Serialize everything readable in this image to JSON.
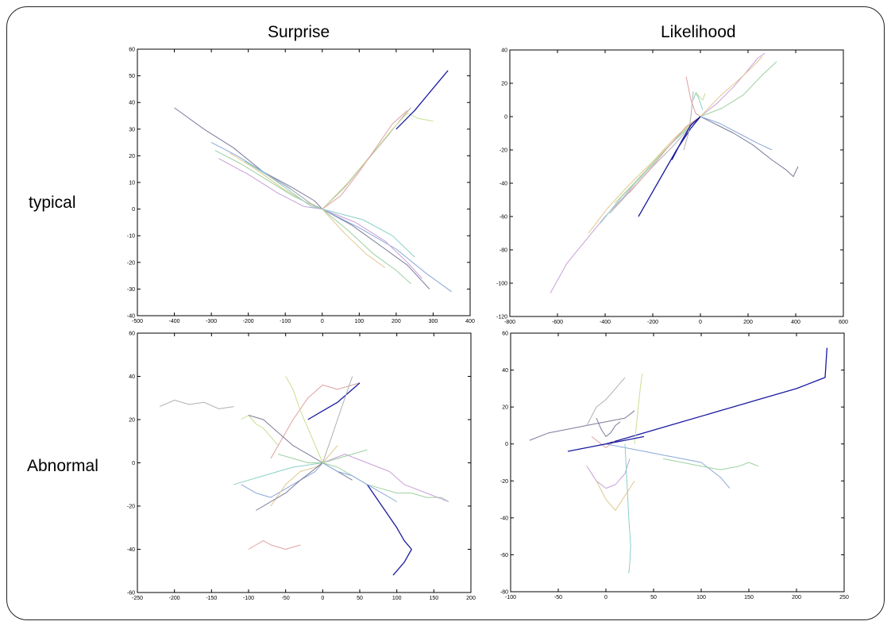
{
  "column_titles": [
    "Surprise",
    "Likelihood"
  ],
  "row_labels": [
    "typical",
    "Abnormal"
  ],
  "colors": {
    "axis": "#000000",
    "traj": [
      "#7a7a9a",
      "#8aa8d8",
      "#9cd0a0",
      "#c8a0d8",
      "#e0c890",
      "#8ad0c8",
      "#b0b0b0",
      "#c8e090",
      "#e0a0a0",
      "#1a1aa0"
    ]
  },
  "chart_data": [
    {
      "id": "typical-surprise",
      "type": "line",
      "title": "",
      "xlabel": "",
      "ylabel": "",
      "xlim": [
        -500,
        400
      ],
      "ylim": [
        -40,
        60
      ],
      "xticks": [
        -500,
        -400,
        -300,
        -200,
        -100,
        0,
        100,
        200,
        300,
        400
      ],
      "yticks": [
        -40,
        -30,
        -20,
        -10,
        0,
        10,
        20,
        30,
        40,
        50,
        60
      ],
      "series": [
        {
          "x": [
            -400,
            -320,
            -240,
            -160,
            -80,
            -20,
            0
          ],
          "y": [
            38,
            30,
            23,
            14,
            8,
            3,
            0
          ]
        },
        {
          "x": [
            -300,
            -230,
            -160,
            -90,
            -30,
            0
          ],
          "y": [
            25,
            20,
            14,
            8,
            2,
            0
          ]
        },
        {
          "x": [
            -290,
            -220,
            -150,
            -80,
            -20,
            0
          ],
          "y": [
            22,
            17,
            11,
            5,
            1,
            0
          ]
        },
        {
          "x": [
            -280,
            -200,
            -120,
            -50,
            0
          ],
          "y": [
            19,
            13,
            6,
            1,
            0
          ]
        },
        {
          "x": [
            -250,
            -180,
            -110,
            -50,
            0
          ],
          "y": [
            21,
            15,
            8,
            3,
            0
          ]
        },
        {
          "x": [
            -210,
            -140,
            -80,
            -30,
            0
          ],
          "y": [
            18,
            12,
            6,
            1,
            0
          ]
        },
        {
          "x": [
            0,
            60,
            120,
            180,
            220,
            240
          ],
          "y": [
            0,
            8,
            18,
            28,
            35,
            38
          ]
        },
        {
          "x": [
            0,
            70,
            130,
            190,
            230,
            260,
            300
          ],
          "y": [
            0,
            10,
            20,
            30,
            36,
            34,
            33
          ]
        },
        {
          "x": [
            0,
            50,
            100,
            150,
            190,
            230
          ],
          "y": [
            0,
            5,
            14,
            24,
            32,
            37
          ]
        },
        {
          "x": [
            200,
            250,
            280,
            310,
            340
          ],
          "y": [
            30,
            37,
            42,
            47,
            52
          ]
        },
        {
          "x": [
            0,
            80,
            160,
            230,
            290
          ],
          "y": [
            0,
            -6,
            -14,
            -21,
            -30
          ]
        },
        {
          "x": [
            0,
            100,
            200,
            280,
            350
          ],
          "y": [
            0,
            -7,
            -15,
            -24,
            -31
          ]
        },
        {
          "x": [
            0,
            70,
            140,
            200,
            240
          ],
          "y": [
            0,
            -8,
            -17,
            -23,
            -28
          ]
        },
        {
          "x": [
            0,
            90,
            170,
            230,
            270
          ],
          "y": [
            0,
            -5,
            -12,
            -20,
            -26
          ]
        },
        {
          "x": [
            0,
            60,
            120,
            170
          ],
          "y": [
            0,
            -9,
            -17,
            -22
          ]
        },
        {
          "x": [
            0,
            110,
            190,
            250
          ],
          "y": [
            0,
            -4,
            -10,
            -18
          ]
        },
        {
          "x": [
            -150,
            -80,
            -30,
            0
          ],
          "y": [
            13,
            7,
            2,
            0
          ]
        }
      ]
    },
    {
      "id": "typical-likelihood",
      "type": "line",
      "title": "",
      "xlabel": "",
      "ylabel": "",
      "xlim": [
        -800,
        600
      ],
      "ylim": [
        -120,
        40
      ],
      "xticks": [
        -800,
        -600,
        -400,
        -200,
        0,
        200,
        400,
        600
      ],
      "yticks": [
        -120,
        -100,
        -80,
        -60,
        -40,
        -20,
        0,
        20,
        40
      ],
      "series": [
        {
          "x": [
            -630,
            -560,
            -480,
            -400,
            -320,
            -240,
            -160,
            -80,
            0
          ],
          "y": [
            -106,
            -88,
            -74,
            -60,
            -48,
            -34,
            -22,
            -10,
            0
          ]
        },
        {
          "x": [
            -470,
            -390,
            -300,
            -200,
            -110,
            -30,
            0
          ],
          "y": [
            -70,
            -55,
            -41,
            -27,
            -13,
            -3,
            0
          ]
        },
        {
          "x": [
            -420,
            -330,
            -240,
            -150,
            -60,
            0
          ],
          "y": [
            -64,
            -48,
            -35,
            -20,
            -8,
            0
          ]
        },
        {
          "x": [
            -380,
            -290,
            -200,
            -110,
            -30,
            0
          ],
          "y": [
            -58,
            -44,
            -30,
            -17,
            -4,
            0
          ]
        },
        {
          "x": [
            -360,
            -260,
            -170,
            -80,
            0
          ],
          "y": [
            -52,
            -37,
            -23,
            -10,
            0
          ]
        },
        {
          "x": [
            -300,
            -220,
            -140,
            -60,
            0
          ],
          "y": [
            -46,
            -33,
            -19,
            -6,
            0
          ]
        },
        {
          "x": [
            -260,
            -180,
            -100,
            -40,
            0
          ],
          "y": [
            -60,
            -40,
            -20,
            -7,
            0
          ]
        },
        {
          "x": [
            0,
            70,
            140,
            220,
            300,
            360,
            390,
            410
          ],
          "y": [
            0,
            -5,
            -10,
            -17,
            -26,
            -32,
            -36,
            -30
          ]
        },
        {
          "x": [
            0,
            80,
            160,
            240,
            300
          ],
          "y": [
            0,
            -4,
            -10,
            -16,
            -20
          ]
        },
        {
          "x": [
            0,
            90,
            180,
            260,
            320
          ],
          "y": [
            0,
            5,
            13,
            25,
            33
          ]
        },
        {
          "x": [
            0,
            70,
            140,
            200,
            240,
            270
          ],
          "y": [
            0,
            8,
            18,
            28,
            35,
            38
          ]
        },
        {
          "x": [
            0,
            80,
            160,
            220,
            260
          ],
          "y": [
            0,
            12,
            22,
            30,
            36
          ]
        },
        {
          "x": [
            -30,
            -20,
            -10,
            0,
            10
          ],
          "y": [
            10,
            14,
            12,
            8,
            4
          ]
        },
        {
          "x": [
            -70,
            -50,
            -40,
            -30
          ],
          "y": [
            -20,
            -10,
            0,
            15
          ]
        },
        {
          "x": [
            -20,
            -5,
            10,
            20
          ],
          "y": [
            15,
            12,
            10,
            14
          ]
        },
        {
          "x": [
            -60,
            -40,
            -20,
            0
          ],
          "y": [
            24,
            10,
            2,
            0
          ]
        },
        {
          "x": [
            -120,
            -80,
            -40,
            0
          ],
          "y": [
            -26,
            -15,
            -5,
            0
          ]
        }
      ]
    },
    {
      "id": "abnormal-surprise",
      "type": "line",
      "title": "",
      "xlabel": "",
      "ylabel": "",
      "xlim": [
        -250,
        200
      ],
      "ylim": [
        -60,
        60
      ],
      "xticks": [
        -250,
        -200,
        -150,
        -100,
        -50,
        0,
        50,
        100,
        150,
        200
      ],
      "yticks": [
        -60,
        -40,
        -20,
        0,
        20,
        40,
        60
      ],
      "series": [
        {
          "x": [
            -220,
            -200,
            -180,
            -160,
            -140,
            -120
          ],
          "y": [
            26,
            29,
            27,
            28,
            25,
            26
          ]
        },
        {
          "x": [
            -110,
            -100,
            -90,
            -80,
            -70,
            -60
          ],
          "y": [
            20,
            22,
            18,
            16,
            12,
            8
          ]
        },
        {
          "x": [
            -70,
            -60,
            -50,
            -40,
            -20,
            0,
            20,
            40,
            50
          ],
          "y": [
            2,
            8,
            14,
            20,
            30,
            36,
            34,
            36,
            37
          ]
        },
        {
          "x": [
            -20,
            0,
            20,
            40,
            50
          ],
          "y": [
            20,
            24,
            28,
            34,
            37
          ]
        },
        {
          "x": [
            -100,
            -80,
            -60,
            -40,
            -20,
            0,
            20,
            40
          ],
          "y": [
            22,
            20,
            14,
            8,
            4,
            0,
            -4,
            -8
          ]
        },
        {
          "x": [
            -110,
            -90,
            -70,
            -50,
            -30,
            -10,
            0
          ],
          "y": [
            -10,
            -14,
            -16,
            -12,
            -8,
            -4,
            0
          ]
        },
        {
          "x": [
            0,
            20,
            40,
            60,
            80,
            100,
            120,
            140,
            160,
            170
          ],
          "y": [
            0,
            -2,
            -6,
            -10,
            -12,
            -14,
            -14,
            -16,
            -16,
            -18
          ]
        },
        {
          "x": [
            0,
            30,
            60,
            90,
            110,
            140,
            170
          ],
          "y": [
            0,
            4,
            0,
            -4,
            -10,
            -14,
            -18
          ]
        },
        {
          "x": [
            -70,
            -50,
            -30,
            -10,
            0,
            10,
            20
          ],
          "y": [
            -20,
            -10,
            -4,
            -2,
            0,
            4,
            8
          ]
        },
        {
          "x": [
            -120,
            -100,
            -80,
            -60,
            -40,
            -20,
            0
          ],
          "y": [
            -10,
            -8,
            -6,
            -4,
            -2,
            -1,
            0
          ]
        },
        {
          "x": [
            0,
            10,
            20,
            30,
            40
          ],
          "y": [
            0,
            10,
            20,
            30,
            40
          ]
        },
        {
          "x": [
            -50,
            -40,
            -30,
            -20,
            -10,
            0
          ],
          "y": [
            40,
            34,
            24,
            16,
            8,
            0
          ]
        },
        {
          "x": [
            -100,
            -90,
            -80,
            -70,
            -50,
            -30
          ],
          "y": [
            -40,
            -38,
            -36,
            -38,
            -40,
            -38
          ]
        },
        {
          "x": [
            60,
            80,
            100,
            110,
            120,
            110,
            100,
            95
          ],
          "y": [
            -10,
            -20,
            -30,
            -36,
            -40,
            -46,
            -50,
            -52
          ]
        },
        {
          "x": [
            -90,
            -80,
            -70,
            -50,
            -30,
            0
          ],
          "y": [
            -22,
            -20,
            -18,
            -14,
            -8,
            0
          ]
        },
        {
          "x": [
            0,
            20,
            40,
            60,
            80,
            100
          ],
          "y": [
            0,
            -4,
            -6,
            -10,
            -14,
            -18
          ]
        },
        {
          "x": [
            -60,
            -40,
            -20,
            0,
            20,
            40,
            60
          ],
          "y": [
            4,
            2,
            0,
            0,
            2,
            4,
            6
          ]
        }
      ]
    },
    {
      "id": "abnormal-likelihood",
      "type": "line",
      "title": "",
      "xlabel": "",
      "ylabel": "",
      "xlim": [
        -100,
        250
      ],
      "ylim": [
        -80,
        60
      ],
      "xticks": [
        -100,
        -50,
        0,
        50,
        100,
        150,
        200,
        250
      ],
      "yticks": [
        -80,
        -60,
        -40,
        -20,
        0,
        20,
        40,
        60
      ],
      "series": [
        {
          "x": [
            0,
            40,
            80,
            120,
            160,
            200,
            220,
            230,
            232
          ],
          "y": [
            0,
            6,
            12,
            18,
            24,
            30,
            34,
            36,
            52
          ]
        },
        {
          "x": [
            -80,
            -60,
            -40,
            -20,
            0,
            20,
            30
          ],
          "y": [
            2,
            6,
            8,
            10,
            12,
            14,
            18
          ]
        },
        {
          "x": [
            0,
            20,
            40,
            60,
            80,
            100,
            120,
            130
          ],
          "y": [
            0,
            -2,
            -4,
            -6,
            -8,
            -10,
            -18,
            -24
          ]
        },
        {
          "x": [
            60,
            80,
            100,
            120,
            140,
            150,
            160
          ],
          "y": [
            -8,
            -10,
            -12,
            -14,
            -12,
            -10,
            -12
          ]
        },
        {
          "x": [
            -20,
            -10,
            0,
            10,
            20,
            25
          ],
          "y": [
            -12,
            -20,
            -24,
            -22,
            -16,
            -8
          ]
        },
        {
          "x": [
            -10,
            0,
            10,
            20,
            30
          ],
          "y": [
            -20,
            -30,
            -36,
            -28,
            -20
          ]
        },
        {
          "x": [
            20,
            22,
            24,
            26,
            25,
            24
          ],
          "y": [
            0,
            -20,
            -40,
            -55,
            -65,
            -70
          ]
        },
        {
          "x": [
            -20,
            -10,
            0,
            10,
            20
          ],
          "y": [
            10,
            20,
            24,
            30,
            36
          ]
        },
        {
          "x": [
            30,
            32,
            34,
            36,
            38
          ],
          "y": [
            0,
            10,
            20,
            30,
            38
          ]
        },
        {
          "x": [
            -15,
            -10,
            -5,
            0,
            5,
            10
          ],
          "y": [
            4,
            2,
            0,
            -2,
            0,
            2
          ]
        },
        {
          "x": [
            -40,
            -20,
            0,
            20,
            40
          ],
          "y": [
            -4,
            -2,
            0,
            2,
            4
          ]
        },
        {
          "x": [
            -10,
            -5,
            0,
            5,
            10,
            15
          ],
          "y": [
            14,
            8,
            4,
            6,
            10,
            12
          ]
        }
      ]
    }
  ]
}
